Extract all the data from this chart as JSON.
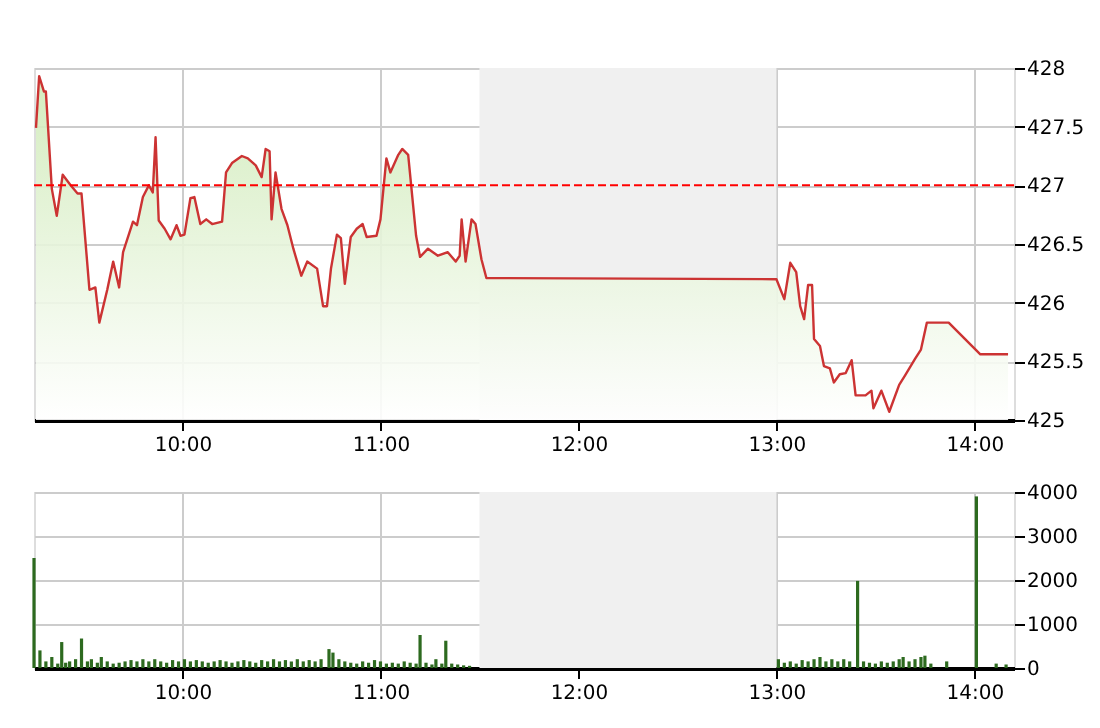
{
  "chart_data": [
    {
      "type": "area",
      "xlim": [
        9.25,
        14.2
      ],
      "xticks": [
        {
          "value": 10,
          "label": "10:00"
        },
        {
          "value": 11,
          "label": "11:00"
        },
        {
          "value": 12,
          "label": "12:00"
        },
        {
          "value": 13,
          "label": "13:00"
        },
        {
          "value": 14,
          "label": "14:00"
        }
      ],
      "ylim": [
        425,
        428
      ],
      "yticks": [
        425,
        425.5,
        426,
        426.5,
        427,
        427.5,
        428
      ],
      "grid": true,
      "line_style": "solid",
      "ref_lines": [
        {
          "axis": "y",
          "value": 427,
          "label": null,
          "color": "#ff0000",
          "line_style": "dashed"
        }
      ],
      "bands": [
        {
          "axis": "x",
          "from": 11.5,
          "to": 13.0,
          "label": null,
          "color": "#f0f0f0"
        }
      ],
      "series": [
        {
          "color": "#cc3333",
          "x": [
            9.26,
            9.276,
            9.3,
            9.31,
            9.34,
            9.365,
            9.395,
            9.435,
            9.47,
            9.49,
            9.53,
            9.56,
            9.58,
            9.62,
            9.65,
            9.68,
            9.7,
            9.75,
            9.77,
            9.8,
            9.83,
            9.85,
            9.864,
            9.88,
            9.91,
            9.94,
            9.97,
            9.99,
            10.01,
            10.04,
            10.06,
            10.09,
            10.12,
            10.15,
            10.2,
            10.22,
            10.25,
            10.3,
            10.33,
            10.37,
            10.4,
            10.42,
            10.44,
            10.45,
            10.47,
            10.5,
            10.53,
            10.56,
            10.6,
            10.63,
            10.68,
            10.71,
            10.73,
            10.75,
            10.78,
            10.8,
            10.82,
            10.85,
            10.88,
            10.91,
            10.93,
            10.98,
            11.0,
            11.03,
            11.05,
            11.09,
            11.11,
            11.14,
            11.18,
            11.2,
            11.24,
            11.29,
            11.34,
            11.38,
            11.4,
            11.41,
            11.43,
            11.46,
            11.48,
            11.51,
            11.535,
            13.0,
            13.04,
            13.07,
            13.1,
            13.12,
            13.14,
            13.16,
            13.18,
            13.19,
            13.22,
            13.24,
            13.27,
            13.29,
            13.32,
            13.35,
            13.38,
            13.4,
            13.45,
            13.48,
            13.49,
            13.53,
            13.57,
            13.62,
            13.65,
            13.7,
            13.73,
            13.76,
            13.87,
            14.03,
            14.17
          ],
          "values": [
            427.49,
            427.93,
            427.8,
            427.8,
            426.97,
            426.74,
            427.09,
            427.0,
            426.93,
            426.93,
            426.11,
            426.13,
            425.83,
            426.11,
            426.35,
            426.13,
            426.43,
            426.69,
            426.66,
            426.9,
            427.0,
            426.94,
            427.41,
            426.7,
            426.63,
            426.54,
            426.66,
            426.57,
            426.58,
            426.89,
            426.9,
            426.67,
            426.71,
            426.67,
            426.69,
            427.11,
            427.19,
            427.25,
            427.23,
            427.17,
            427.07,
            427.31,
            427.29,
            426.71,
            427.11,
            426.8,
            426.66,
            426.46,
            426.23,
            426.35,
            426.29,
            425.97,
            425.97,
            426.29,
            426.58,
            426.55,
            426.16,
            426.56,
            426.63,
            426.67,
            426.56,
            426.57,
            426.71,
            427.23,
            427.11,
            427.26,
            427.31,
            427.26,
            426.57,
            426.39,
            426.46,
            426.4,
            426.43,
            426.35,
            426.4,
            426.71,
            426.35,
            426.71,
            426.67,
            426.37,
            426.21,
            426.2,
            426.03,
            426.34,
            426.26,
            425.97,
            425.86,
            426.15,
            426.15,
            425.69,
            425.63,
            425.46,
            425.44,
            425.32,
            425.39,
            425.4,
            425.51,
            425.21,
            425.21,
            425.25,
            425.1,
            425.25,
            425.07,
            425.3,
            425.38,
            425.52,
            425.6,
            425.83,
            425.83,
            425.56,
            425.56
          ]
        }
      ]
    },
    {
      "type": "bar",
      "xlim": [
        9.25,
        14.2
      ],
      "xticks": [
        {
          "value": 10,
          "label": "10:00"
        },
        {
          "value": 11,
          "label": "11:00"
        },
        {
          "value": 12,
          "label": "12:00"
        },
        {
          "value": 13,
          "label": "13:00"
        },
        {
          "value": 14,
          "label": "14:00"
        }
      ],
      "ylim": [
        0,
        4000
      ],
      "yticks": [
        0,
        1000,
        2000,
        3000,
        4000
      ],
      "grid": true,
      "bands": [
        {
          "axis": "x",
          "from": 11.5,
          "to": 13.0,
          "label": null,
          "color": "#f0f0f0"
        }
      ],
      "series": [
        {
          "color": "#2d6a1f",
          "x": [
            9.25,
            9.28,
            9.31,
            9.34,
            9.37,
            9.39,
            9.41,
            9.43,
            9.46,
            9.49,
            9.52,
            9.54,
            9.57,
            9.59,
            9.62,
            9.65,
            9.68,
            9.71,
            9.74,
            9.77,
            9.8,
            9.83,
            9.86,
            9.89,
            9.92,
            9.95,
            9.98,
            10.01,
            10.04,
            10.07,
            10.1,
            10.13,
            10.16,
            10.19,
            10.22,
            10.25,
            10.28,
            10.31,
            10.34,
            10.37,
            10.4,
            10.43,
            10.46,
            10.49,
            10.52,
            10.55,
            10.58,
            10.61,
            10.64,
            10.67,
            10.7,
            10.74,
            10.76,
            10.79,
            10.82,
            10.85,
            10.88,
            10.91,
            10.94,
            10.97,
            11.0,
            11.03,
            11.06,
            11.09,
            11.12,
            11.15,
            11.18,
            11.2,
            11.23,
            11.26,
            11.28,
            11.31,
            11.33,
            11.36,
            11.39,
            11.42,
            11.45,
            13.01,
            13.04,
            13.07,
            13.1,
            13.13,
            13.16,
            13.19,
            13.22,
            13.25,
            13.28,
            13.31,
            13.34,
            13.37,
            13.41,
            13.44,
            13.47,
            13.5,
            13.53,
            13.56,
            13.59,
            13.62,
            13.64,
            13.67,
            13.7,
            13.73,
            13.75,
            13.78,
            13.86,
            14.01,
            14.11,
            14.16
          ],
          "values": [
            2500,
            400,
            150,
            250,
            100,
            590,
            120,
            150,
            200,
            670,
            150,
            200,
            120,
            250,
            150,
            100,
            120,
            150,
            180,
            150,
            200,
            150,
            200,
            150,
            120,
            180,
            150,
            200,
            150,
            180,
            150,
            120,
            150,
            180,
            150,
            120,
            150,
            180,
            150,
            120,
            180,
            150,
            200,
            150,
            180,
            150,
            200,
            150,
            180,
            150,
            200,
            430,
            350,
            200,
            150,
            120,
            100,
            150,
            120,
            180,
            150,
            100,
            120,
            100,
            150,
            120,
            100,
            750,
            120,
            80,
            200,
            100,
            620,
            100,
            80,
            60,
            50,
            200,
            120,
            150,
            100,
            180,
            150,
            200,
            250,
            150,
            200,
            150,
            200,
            150,
            1980,
            150,
            120,
            100,
            150,
            120,
            150,
            200,
            250,
            150,
            200,
            250,
            280,
            100,
            150,
            3900,
            100,
            80
          ]
        }
      ]
    }
  ]
}
